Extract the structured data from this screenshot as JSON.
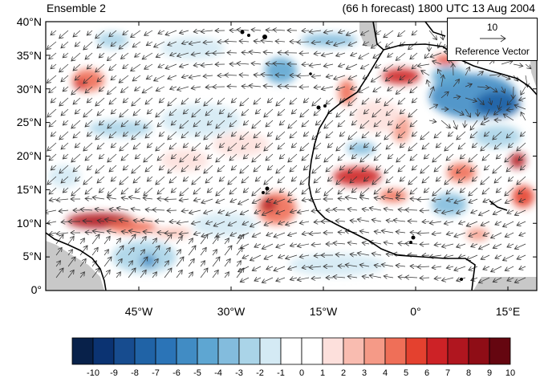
{
  "title_left": "Ensemble 2",
  "title_right": "(66 h forecast) 1800 UTC 13 Aug 2004",
  "y_ticks": [
    "40°N",
    "35°N",
    "30°N",
    "25°N",
    "20°N",
    "15°N",
    "10°N",
    "5°N",
    "0°"
  ],
  "x_ticks": [
    "45°W",
    "30°W",
    "15°W",
    "0°",
    "15°E"
  ],
  "reference": {
    "magnitude": "10",
    "label": "Reference Vector"
  },
  "colorbar": {
    "labels": [
      "-10",
      "-9",
      "-8",
      "-7",
      "-6",
      "-5",
      "-4",
      "-3",
      "-2",
      "-1",
      "0",
      "1",
      "2",
      "3",
      "4",
      "5",
      "6",
      "7",
      "8",
      "9",
      "10"
    ],
    "colors": [
      "#08214a",
      "#0b3372",
      "#174c8f",
      "#2063a6",
      "#2b74b7",
      "#418cc4",
      "#5ea6d2",
      "#83bcdd",
      "#aad4e8",
      "#d4eaf4",
      "#ffffff",
      "#ffffff",
      "#fde0dc",
      "#f9bcb0",
      "#f59a87",
      "#ef6f58",
      "#e4412f",
      "#cd2226",
      "#b0161f",
      "#8f0d16",
      "#650610"
    ]
  },
  "map": {
    "lon_range": [
      -60,
      20
    ],
    "lat_range": [
      0,
      40
    ],
    "land_mask_color": "#c8c8c8"
  }
}
